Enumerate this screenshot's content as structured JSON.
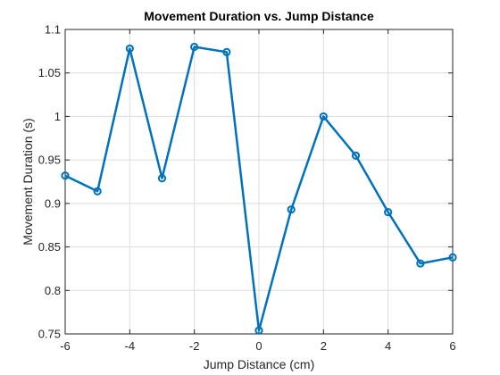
{
  "chart_data": {
    "type": "line",
    "title": "Movement Duration vs. Jump Distance",
    "xlabel": "Jump Distance (cm)",
    "ylabel": "Movement Duration (s)",
    "xlim": [
      -6,
      6
    ],
    "ylim": [
      0.75,
      1.1
    ],
    "xticks": [
      -6,
      -4,
      -2,
      0,
      2,
      4,
      6
    ],
    "xtick_labels": [
      "-6",
      "-4",
      "-2",
      "0",
      "2",
      "4",
      "6"
    ],
    "yticks": [
      0.75,
      0.8,
      0.85,
      0.9,
      0.95,
      1,
      1.05,
      1.1
    ],
    "ytick_labels": [
      "0.75",
      "0.8",
      "0.85",
      "0.9",
      "0.95",
      "1",
      "1.05",
      "1.1"
    ],
    "grid": true,
    "marker": "circle",
    "color": "#0072BD",
    "series": [
      {
        "x": [
          -6,
          -5,
          -4,
          -3,
          -2,
          -1,
          0,
          1,
          2,
          3,
          4,
          5,
          6
        ],
        "y": [
          0.932,
          0.914,
          1.078,
          0.929,
          1.08,
          1.074,
          0.754,
          0.893,
          1.0,
          0.955,
          0.89,
          0.831,
          0.838
        ]
      }
    ]
  }
}
